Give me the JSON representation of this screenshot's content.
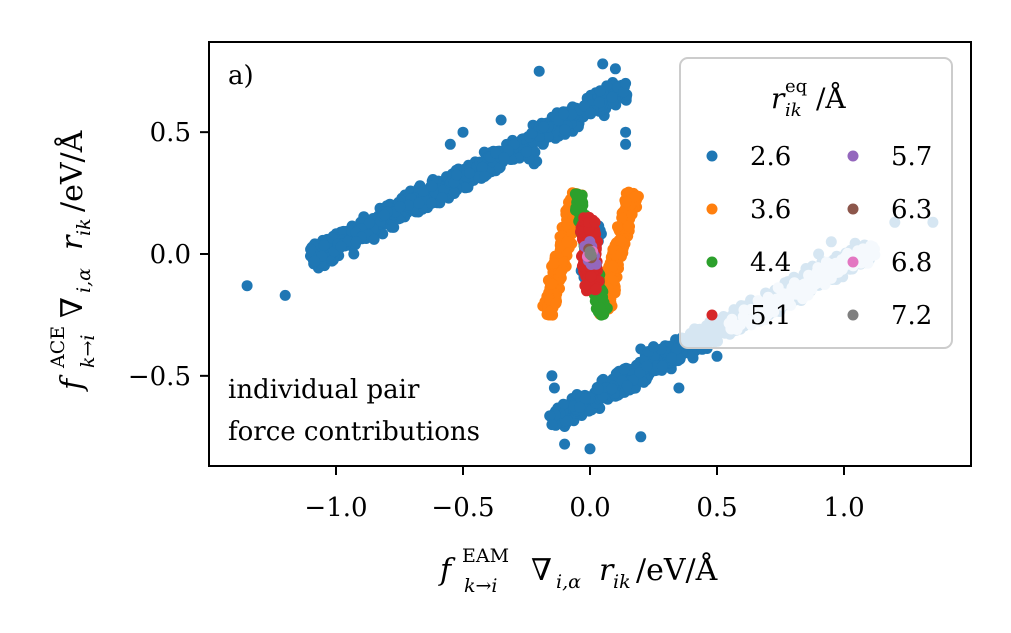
{
  "chart_data": {
    "type": "scatter",
    "panel_label": "a)",
    "xlabel": "f_{k→i}^{EAM} ∇_{i,α} r_{ik} / eV/Å",
    "ylabel": "f_{k→i}^{ACE} ∇_{i,α} r_{ik} / eV/Å",
    "xlabel_parts": {
      "f": "f",
      "sup": "EAM",
      "sub": "k→i",
      "nabla": "∇",
      "nabla_sub": "i,α",
      "r": "r",
      "r_sub": "ik",
      "unit": "/eV/Å"
    },
    "ylabel_parts": {
      "f": "f",
      "sup": "ACE",
      "sub": "k→i",
      "nabla": "∇",
      "nabla_sub": "i,α",
      "r": "r",
      "r_sub": "ik",
      "unit": "/eV/Å"
    },
    "xlim": [
      -1.5,
      1.5
    ],
    "ylim": [
      -0.87,
      0.87
    ],
    "xticks": [
      -1.0,
      -0.5,
      0.0,
      0.5,
      1.0
    ],
    "xtick_labels": [
      "−1.0",
      "−0.5",
      "0.0",
      "0.5",
      "1.0"
    ],
    "yticks": [
      -0.5,
      0.0,
      0.5
    ],
    "ytick_labels": [
      "−0.5",
      "0.0",
      "0.5"
    ],
    "annotation": [
      "individual pair",
      "force contributions"
    ],
    "legend": {
      "title_main": "r",
      "title_sup": "eq",
      "title_sub": "ik",
      "title_unit": "/Å",
      "placement": "top-right",
      "columns": 2
    },
    "series": [
      {
        "name": "2.6",
        "color": "#1f77b4",
        "bands": [
          {
            "x0": -1.1,
            "y0": -0.02,
            "x1": 0.15,
            "y1": 0.68,
            "half_width": 0.035,
            "count": 750
          },
          {
            "x0": -0.15,
            "y0": -0.68,
            "x1": 1.1,
            "y1": 0.02,
            "half_width": 0.035,
            "count": 750
          },
          {
            "x0": -0.03,
            "y0": -0.12,
            "x1": 0.03,
            "y1": 0.12,
            "half_width": 0.02,
            "count": 40
          }
        ],
        "points": [
          [
            -1.35,
            -0.13
          ],
          [
            -1.2,
            -0.17
          ],
          [
            -0.98,
            0.03
          ],
          [
            -0.93,
            0.0
          ],
          [
            -0.9,
            0.07
          ],
          [
            -0.92,
            0.05
          ],
          [
            -0.85,
            0.06
          ],
          [
            -0.81,
            0.16
          ],
          [
            -0.22,
            0.37
          ],
          [
            -0.21,
            0.38
          ],
          [
            -0.24,
            0.39
          ],
          [
            -0.5,
            0.5
          ],
          [
            -0.35,
            0.55
          ],
          [
            -0.2,
            0.75
          ],
          [
            0.05,
            0.78
          ],
          [
            0.1,
            0.76
          ],
          [
            0.14,
            0.7
          ],
          [
            0.14,
            0.5
          ],
          [
            0.14,
            0.45
          ],
          [
            -0.25,
            0.42
          ],
          [
            0.2,
            -0.39
          ],
          [
            0.23,
            -0.4
          ],
          [
            0.25,
            -0.38
          ],
          [
            -0.15,
            -0.5
          ],
          [
            -0.15,
            -0.7
          ],
          [
            0.5,
            -0.42
          ],
          [
            0.35,
            -0.55
          ],
          [
            0.2,
            -0.75
          ],
          [
            0.0,
            -0.8
          ],
          [
            -0.1,
            -0.78
          ],
          [
            -0.14,
            -0.55
          ],
          [
            1.2,
            0.13
          ],
          [
            1.35,
            0.13
          ],
          [
            0.9,
            0.0
          ],
          [
            1.0,
            -0.02
          ],
          [
            1.1,
            0.03
          ],
          [
            0.95,
            0.05
          ],
          [
            -0.55,
            0.45
          ]
        ]
      },
      {
        "name": "3.6",
        "color": "#ff7f0e",
        "bands": [
          {
            "x0": -0.17,
            "y0": -0.25,
            "x1": -0.05,
            "y1": 0.25,
            "half_width": 0.02,
            "count": 220
          },
          {
            "x0": 0.05,
            "y0": -0.25,
            "x1": 0.17,
            "y1": 0.25,
            "half_width": 0.02,
            "count": 220
          }
        ],
        "points": [
          [
            0.0,
            0.0
          ],
          [
            -0.09,
            0.05
          ],
          [
            0.09,
            -0.05
          ]
        ]
      },
      {
        "name": "4.4",
        "color": "#2ca02c",
        "bands": [
          {
            "x0": -0.05,
            "y0": 0.25,
            "x1": 0.05,
            "y1": -0.25,
            "half_width": 0.015,
            "count": 220
          }
        ],
        "points": [
          [
            -0.05,
            0.24
          ],
          [
            0.05,
            -0.24
          ],
          [
            -0.04,
            0.22
          ],
          [
            0.04,
            -0.22
          ]
        ]
      },
      {
        "name": "5.1",
        "color": "#d62728",
        "bands": [
          {
            "x0": -0.01,
            "y0": 0.15,
            "x1": 0.01,
            "y1": -0.15,
            "half_width": 0.022,
            "count": 150
          }
        ],
        "points": [
          [
            0.02,
            0.13
          ],
          [
            -0.02,
            -0.13
          ],
          [
            0.03,
            0.05
          ],
          [
            -0.03,
            -0.05
          ]
        ]
      },
      {
        "name": "5.7",
        "color": "#9467bd",
        "bands": [
          {
            "x0": -0.01,
            "y0": 0.05,
            "x1": 0.01,
            "y1": -0.05,
            "half_width": 0.012,
            "count": 30
          }
        ],
        "points": [
          [
            0.0,
            0.02
          ],
          [
            0.01,
            -0.02
          ]
        ]
      },
      {
        "name": "6.3",
        "color": "#8c564b",
        "bands": [],
        "points": [
          [
            0.0,
            0.01
          ],
          [
            0.005,
            -0.015
          ],
          [
            -0.005,
            0.02
          ],
          [
            0.0,
            -0.005
          ]
        ]
      },
      {
        "name": "6.8",
        "color": "#e377c2",
        "bands": [],
        "points": [
          [
            0.0,
            0.0
          ],
          [
            0.01,
            0.01
          ],
          [
            -0.01,
            -0.01
          ]
        ]
      },
      {
        "name": "7.2",
        "color": "#7f7f7f",
        "bands": [],
        "points": [
          [
            0.0,
            0.0
          ],
          [
            0.0,
            0.01
          ],
          [
            0.005,
            -0.005
          ]
        ]
      }
    ],
    "highlight_series": {
      "name": "light",
      "color": "#c9def0",
      "bands": [
        {
          "x0": 0.55,
          "y0": -0.3,
          "x1": 1.12,
          "y1": 0.02,
          "half_width": 0.03,
          "count": 130
        }
      ],
      "points": [
        [
          0.9,
          -0.08
        ],
        [
          1.0,
          -0.05
        ],
        [
          1.12,
          0.02
        ],
        [
          1.05,
          0.0
        ],
        [
          0.95,
          -0.1
        ]
      ]
    }
  }
}
